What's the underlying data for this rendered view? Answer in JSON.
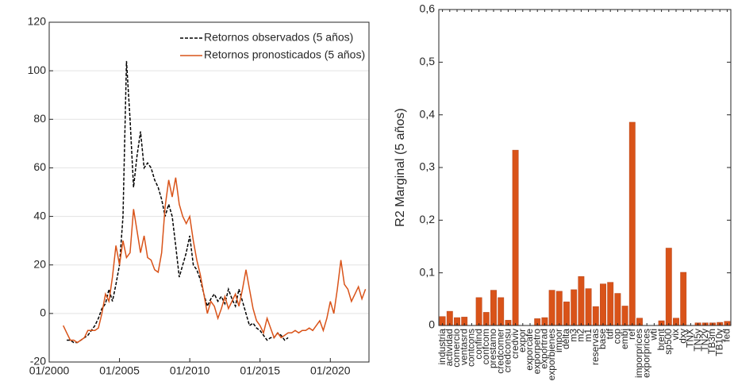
{
  "chart_data": [
    {
      "type": "line",
      "x": [
        "01/2001",
        "04/2001",
        "07/2001",
        "10/2001",
        "01/2002",
        "04/2002",
        "07/2002",
        "10/2002",
        "01/2003",
        "04/2003",
        "07/2003",
        "10/2003",
        "01/2004",
        "04/2004",
        "07/2004",
        "10/2004",
        "01/2005",
        "04/2005",
        "07/2005",
        "10/2005",
        "01/2006",
        "04/2006",
        "07/2006",
        "10/2006",
        "01/2007",
        "04/2007",
        "07/2007",
        "10/2007",
        "01/2008",
        "04/2008",
        "07/2008",
        "10/2008",
        "01/2009",
        "04/2009",
        "07/2009",
        "10/2009",
        "01/2010",
        "04/2010",
        "07/2010",
        "10/2010",
        "01/2011",
        "04/2011",
        "07/2011",
        "10/2011",
        "01/2012",
        "04/2012",
        "07/2012",
        "10/2012",
        "01/2013",
        "04/2013",
        "07/2013",
        "10/2013",
        "01/2014",
        "04/2014",
        "07/2014",
        "10/2014",
        "01/2015",
        "04/2015",
        "07/2015",
        "10/2015",
        "01/2016",
        "04/2016",
        "07/2016",
        "10/2016",
        "01/2017",
        "04/2017",
        "07/2017",
        "10/2017",
        "01/2018",
        "04/2018",
        "07/2018",
        "10/2018",
        "01/2019",
        "04/2019",
        "07/2019",
        "10/2019",
        "01/2020",
        "04/2020",
        "07/2020",
        "10/2020",
        "01/2021",
        "04/2021",
        "07/2021",
        "10/2021",
        "01/2022",
        "04/2022",
        "07/2022"
      ],
      "series": [
        {
          "name": "Retornos observados (5 años)",
          "color": "#000000",
          "dash": true,
          "values": [
            null,
            -11,
            -11,
            -12,
            -12,
            -11,
            -10,
            -9,
            -7,
            -5,
            -2,
            2,
            4,
            10,
            5,
            12,
            20,
            40,
            104,
            80,
            52,
            65,
            75,
            60,
            62,
            60,
            55,
            52,
            47,
            40,
            45,
            40,
            28,
            15,
            20,
            25,
            32,
            20,
            18,
            14,
            8,
            3,
            6,
            8,
            5,
            7,
            4,
            10,
            6,
            3,
            10,
            5,
            0,
            -5,
            -4,
            -6,
            -7,
            -9,
            -11,
            -10,
            -10,
            -8,
            -9,
            -11,
            -10,
            null,
            null,
            null,
            null,
            null,
            null,
            null,
            null,
            null,
            null,
            null,
            null,
            null,
            null,
            null,
            null,
            null,
            null,
            null,
            null,
            null,
            null
          ]
        },
        {
          "name": "Retornos pronosticados (5 años)",
          "color": "#d95319",
          "dash": false,
          "values": [
            -5,
            -8,
            -11,
            -11,
            -12,
            -11,
            -10,
            -7,
            -7,
            -7,
            -6,
            0,
            8,
            5,
            15,
            28,
            20,
            30,
            23,
            25,
            43,
            34,
            25,
            32,
            23,
            22,
            18,
            17,
            25,
            44,
            55,
            48,
            56,
            45,
            40,
            37,
            40,
            30,
            22,
            16,
            8,
            0,
            5,
            3,
            -2,
            2,
            7,
            2,
            5,
            8,
            3,
            10,
            18,
            10,
            2,
            -3,
            -5,
            -8,
            -2,
            -6,
            -10,
            -8,
            -10,
            -9,
            -8,
            -8,
            -7,
            -8,
            -7,
            -7,
            -6,
            -7,
            -5,
            -3,
            -7,
            -2,
            5,
            0,
            10,
            22,
            12,
            10,
            5,
            8,
            11,
            6,
            10
          ]
        }
      ],
      "xlim": [
        "01/2000",
        "10/2022"
      ],
      "xticks": [
        "01/2000",
        "01/2005",
        "01/2010",
        "01/2015",
        "01/2020"
      ],
      "ylim": [
        -20,
        120
      ],
      "yticks": [
        -20,
        0,
        20,
        40,
        60,
        80,
        100,
        120
      ],
      "grid": true,
      "legend": "upper-right"
    },
    {
      "type": "bar",
      "y_label": "R2 Marginal (5 años)",
      "categories": [
        "industria",
        "actividad",
        "comercio",
        "ventasrd",
        "contcons",
        "confind",
        "confcom",
        "prestamo",
        "credcomer",
        "credconsu",
        "credviv",
        "expor",
        "exporcafe",
        "exporpetro",
        "exportrad",
        "exporbienes",
        "impor",
        "delta",
        "m3",
        "m2",
        "m1",
        "reservas",
        "base",
        "tdf",
        "cop",
        "embi",
        "ref",
        "imporprices",
        "exporprices",
        "wti",
        "brent",
        "sp500",
        "vix",
        "dxy",
        "TNX",
        "TN5y",
        "TN2y",
        "TB3m",
        "TB10y",
        "fed"
      ],
      "values": [
        0.017,
        0.027,
        0.015,
        0.016,
        0,
        0.053,
        0.025,
        0.067,
        0.053,
        0.01,
        0.333,
        0,
        0,
        0.013,
        0.015,
        0.067,
        0.065,
        0.045,
        0.068,
        0.093,
        0.07,
        0.036,
        0.079,
        0.082,
        0.061,
        0.037,
        0.386,
        0.014,
        0,
        0,
        0.009,
        0.147,
        0.014,
        0.101,
        0,
        0.005,
        0.005,
        0.005,
        0.006,
        0.008
      ],
      "color": "#d95319",
      "ylim": [
        0,
        0.6
      ],
      "yticks": [
        0,
        {
          "value": 0.1,
          "label": "0,1"
        },
        {
          "value": 0.2,
          "label": "0,2"
        },
        {
          "value": 0.3,
          "label": "0,3"
        },
        {
          "value": 0.4,
          "label": "0,4"
        },
        {
          "value": 0.5,
          "label": "0,5"
        },
        {
          "value": 0.6,
          "label": "0,6"
        }
      ],
      "grid": false
    }
  ]
}
